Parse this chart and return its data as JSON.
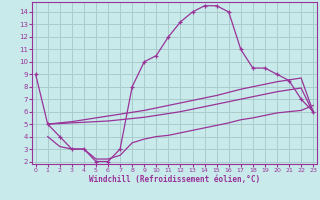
{
  "xlabel": "Windchill (Refroidissement éolien,°C)",
  "background_color": "#c8eaea",
  "grid_color": "#aacccc",
  "line_color": "#993399",
  "x_ticks": [
    0,
    1,
    2,
    3,
    4,
    5,
    6,
    7,
    8,
    9,
    10,
    11,
    12,
    13,
    14,
    15,
    16,
    17,
    18,
    19,
    20,
    21,
    22,
    23
  ],
  "y_ticks": [
    2,
    3,
    4,
    5,
    6,
    7,
    8,
    9,
    10,
    11,
    12,
    13,
    14
  ],
  "ylim": [
    1.8,
    14.8
  ],
  "xlim": [
    -0.3,
    23.3
  ],
  "main_x": [
    0,
    1,
    2,
    3,
    4,
    5,
    6,
    7,
    8,
    9,
    10,
    11,
    12,
    13,
    14,
    15,
    16,
    17,
    18,
    19,
    20,
    21,
    22,
    23
  ],
  "main_y": [
    9,
    5,
    4,
    3,
    3,
    2,
    2,
    3,
    8,
    10,
    10.5,
    12,
    13.2,
    14,
    14.5,
    14.5,
    14,
    11,
    9.5,
    9.5,
    9,
    8.5,
    7,
    6
  ],
  "line_upper_x": [
    1,
    2,
    3,
    4,
    5,
    6,
    7,
    8,
    9,
    10,
    11,
    12,
    13,
    14,
    15,
    16,
    17,
    18,
    19,
    20,
    21,
    22,
    23
  ],
  "line_upper_y": [
    5.0,
    5.1,
    5.2,
    5.35,
    5.5,
    5.65,
    5.8,
    5.95,
    6.1,
    6.3,
    6.5,
    6.7,
    6.9,
    7.1,
    7.3,
    7.55,
    7.8,
    8.0,
    8.2,
    8.4,
    8.55,
    8.7,
    6.0
  ],
  "line_mid_x": [
    1,
    2,
    3,
    4,
    5,
    6,
    7,
    8,
    9,
    10,
    11,
    12,
    13,
    14,
    15,
    16,
    17,
    18,
    19,
    20,
    21,
    22,
    23
  ],
  "line_mid_y": [
    5.0,
    5.05,
    5.1,
    5.15,
    5.2,
    5.25,
    5.35,
    5.45,
    5.55,
    5.7,
    5.85,
    6.0,
    6.2,
    6.4,
    6.6,
    6.8,
    7.0,
    7.2,
    7.4,
    7.6,
    7.75,
    7.9,
    5.9
  ],
  "line_lower_x": [
    1,
    2,
    3,
    4,
    5,
    6,
    7,
    8,
    9,
    10,
    11,
    12,
    13,
    14,
    15,
    16,
    17,
    18,
    19,
    20,
    21,
    22,
    23
  ],
  "line_lower_y": [
    4.0,
    3.2,
    3.0,
    3.0,
    2.2,
    2.2,
    2.5,
    3.5,
    3.8,
    4.0,
    4.1,
    4.3,
    4.5,
    4.7,
    4.9,
    5.1,
    5.35,
    5.5,
    5.7,
    5.9,
    6.0,
    6.1,
    6.5
  ]
}
